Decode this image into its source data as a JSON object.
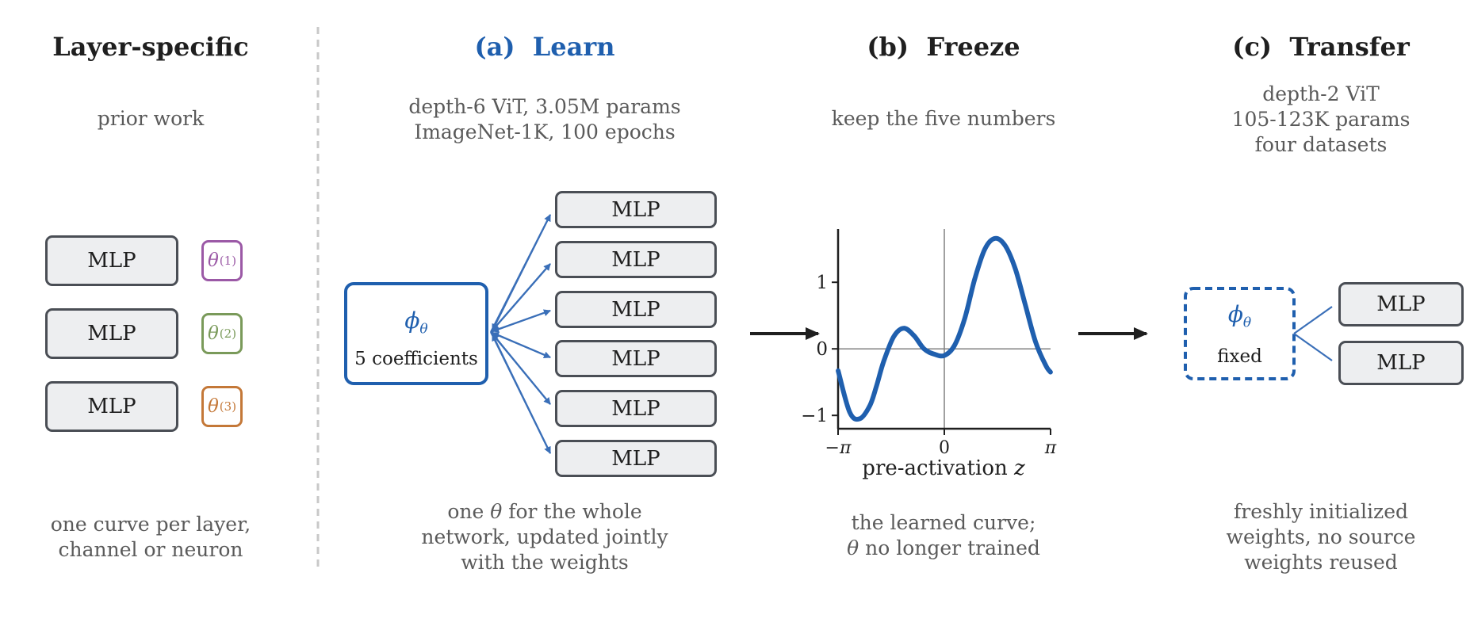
{
  "colors": {
    "blue": "#1f5fae",
    "purple": "#9b59a6",
    "green": "#7a9a5a",
    "orange": "#c47838",
    "text_dark": "#1f1f1f",
    "text_gray": "#5a5a5a",
    "mlp_border": "#4a4e55",
    "mlp_fill": "#edeef0"
  },
  "layer_specific": {
    "title": "Layer-specific",
    "subtitle": "prior work",
    "mlp_label": "MLP",
    "thetas": [
      {
        "symbol": "θ",
        "superscript": "(1)",
        "color": "#9b59a6"
      },
      {
        "symbol": "θ",
        "superscript": "(2)",
        "color": "#7a9a5a"
      },
      {
        "symbol": "θ",
        "superscript": "(3)",
        "color": "#c47838"
      }
    ],
    "caption": [
      "one curve per layer,",
      "channel or neuron"
    ]
  },
  "learn": {
    "label": "(a)",
    "title": "Learn",
    "subtitle": [
      "depth-6 ViT, 3.05M params",
      "ImageNet-1K, 100 epochs"
    ],
    "phi": "ϕ",
    "phi_sub": "θ",
    "coeff_label": "5 coefficients",
    "mlp_label": "MLP",
    "caption_line1_pre": "one ",
    "caption_theta": "θ",
    "caption_line1_post": " for the whole",
    "caption_line2": "network, updated jointly",
    "caption_line3": "with the weights"
  },
  "freeze": {
    "label": "(b)",
    "title": "Freeze",
    "subtitle": "keep the five numbers",
    "caption_line1": "the learned curve;",
    "caption_theta": "θ",
    "caption_line2_post": " no longer trained"
  },
  "transfer": {
    "label": "(c)",
    "title": "Transfer",
    "subtitle": [
      "depth-2 ViT",
      "105-123K params",
      "four datasets"
    ],
    "phi": "ϕ",
    "phi_sub": "θ",
    "fixed_label": "fixed",
    "mlp_label": "MLP",
    "caption": [
      "freshly initialized",
      "weights, no source",
      "weights reused"
    ]
  },
  "chart_data": {
    "type": "line",
    "title": "",
    "xlabel": "pre-activation z",
    "ylabel": "",
    "xlim": [
      -3.1416,
      3.1416
    ],
    "ylim": [
      -1.2,
      1.8
    ],
    "x_ticks": [
      -3.1416,
      0,
      3.1416
    ],
    "x_tick_labels": [
      "−π",
      "0",
      "π"
    ],
    "y_ticks": [
      -1,
      0,
      1
    ],
    "y_tick_labels": [
      "−1",
      "0",
      "1"
    ],
    "reference_lines": {
      "x": 0,
      "y": 0
    },
    "series": [
      {
        "color": "#1f5fae",
        "x": [
          -3.14,
          -2.8,
          -2.5,
          -2.2,
          -2.0,
          -1.8,
          -1.5,
          -1.2,
          -0.9,
          -0.6,
          -0.3,
          0.0,
          0.3,
          0.6,
          0.9,
          1.2,
          1.5,
          1.8,
          2.1,
          2.4,
          2.7,
          3.0,
          3.14
        ],
        "y": [
          -0.33,
          -0.95,
          -1.05,
          -0.85,
          -0.55,
          -0.2,
          0.18,
          0.31,
          0.2,
          0.0,
          -0.08,
          -0.1,
          0.05,
          0.45,
          1.05,
          1.5,
          1.66,
          1.55,
          1.2,
          0.65,
          0.1,
          -0.25,
          -0.35
        ]
      }
    ]
  }
}
